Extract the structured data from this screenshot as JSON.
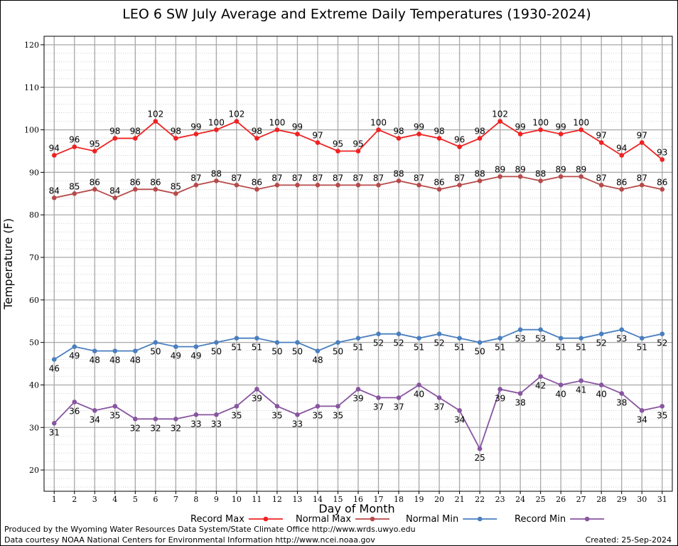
{
  "chart_data": {
    "type": "line",
    "title": "LEO 6 SW July Average and Extreme Daily Temperatures (1930-2024)",
    "xlabel": "Day of Month",
    "ylabel": "Temperature (F)",
    "x": [
      1,
      2,
      3,
      4,
      5,
      6,
      7,
      8,
      9,
      10,
      11,
      12,
      13,
      14,
      15,
      16,
      17,
      18,
      19,
      20,
      21,
      22,
      23,
      24,
      25,
      26,
      27,
      28,
      29,
      30,
      31
    ],
    "xlim": [
      0.5,
      31.5
    ],
    "ylim": [
      15,
      122
    ],
    "y_ticks": [
      20,
      30,
      40,
      50,
      60,
      70,
      80,
      90,
      100,
      110,
      120
    ],
    "grid": true,
    "legend_position": "bottom",
    "series": [
      {
        "name": "Record Max",
        "color": "#ee2222",
        "label_position": "above",
        "values": [
          94,
          96,
          95,
          98,
          98,
          102,
          98,
          99,
          100,
          102,
          98,
          100,
          99,
          97,
          95,
          95,
          100,
          98,
          99,
          98,
          96,
          98,
          102,
          99,
          100,
          99,
          100,
          97,
          94,
          97,
          93
        ]
      },
      {
        "name": "Normal Max",
        "color": "#b74a4a",
        "label_position": "above",
        "values": [
          84,
          85,
          86,
          84,
          86,
          86,
          85,
          87,
          88,
          87,
          86,
          87,
          87,
          87,
          87,
          87,
          87,
          88,
          87,
          86,
          87,
          88,
          89,
          89,
          88,
          89,
          89,
          87,
          86,
          87,
          86
        ]
      },
      {
        "name": "Normal Min",
        "color": "#4a7fbf",
        "label_position": "below",
        "values": [
          46,
          49,
          48,
          48,
          48,
          50,
          49,
          49,
          50,
          51,
          51,
          50,
          50,
          48,
          50,
          51,
          52,
          52,
          51,
          52,
          51,
          50,
          51,
          53,
          53,
          51,
          51,
          52,
          53,
          51,
          52
        ]
      },
      {
        "name": "Record Min",
        "color": "#8855a0",
        "label_position": "below",
        "values": [
          31,
          36,
          34,
          35,
          32,
          32,
          32,
          33,
          33,
          35,
          39,
          35,
          33,
          35,
          35,
          39,
          37,
          37,
          40,
          37,
          34,
          25,
          39,
          38,
          42,
          40,
          41,
          40,
          38,
          34,
          35
        ]
      }
    ]
  },
  "footer": {
    "line1": "Produced by the Wyoming Water Resources Data System/State Climate Office http://www.wrds.uwyo.edu",
    "line2": "Data courtesy NOAA National Centers for Environmental Information http://www.ncei.noaa.gov",
    "created": "Created:  25-Sep-2024"
  }
}
